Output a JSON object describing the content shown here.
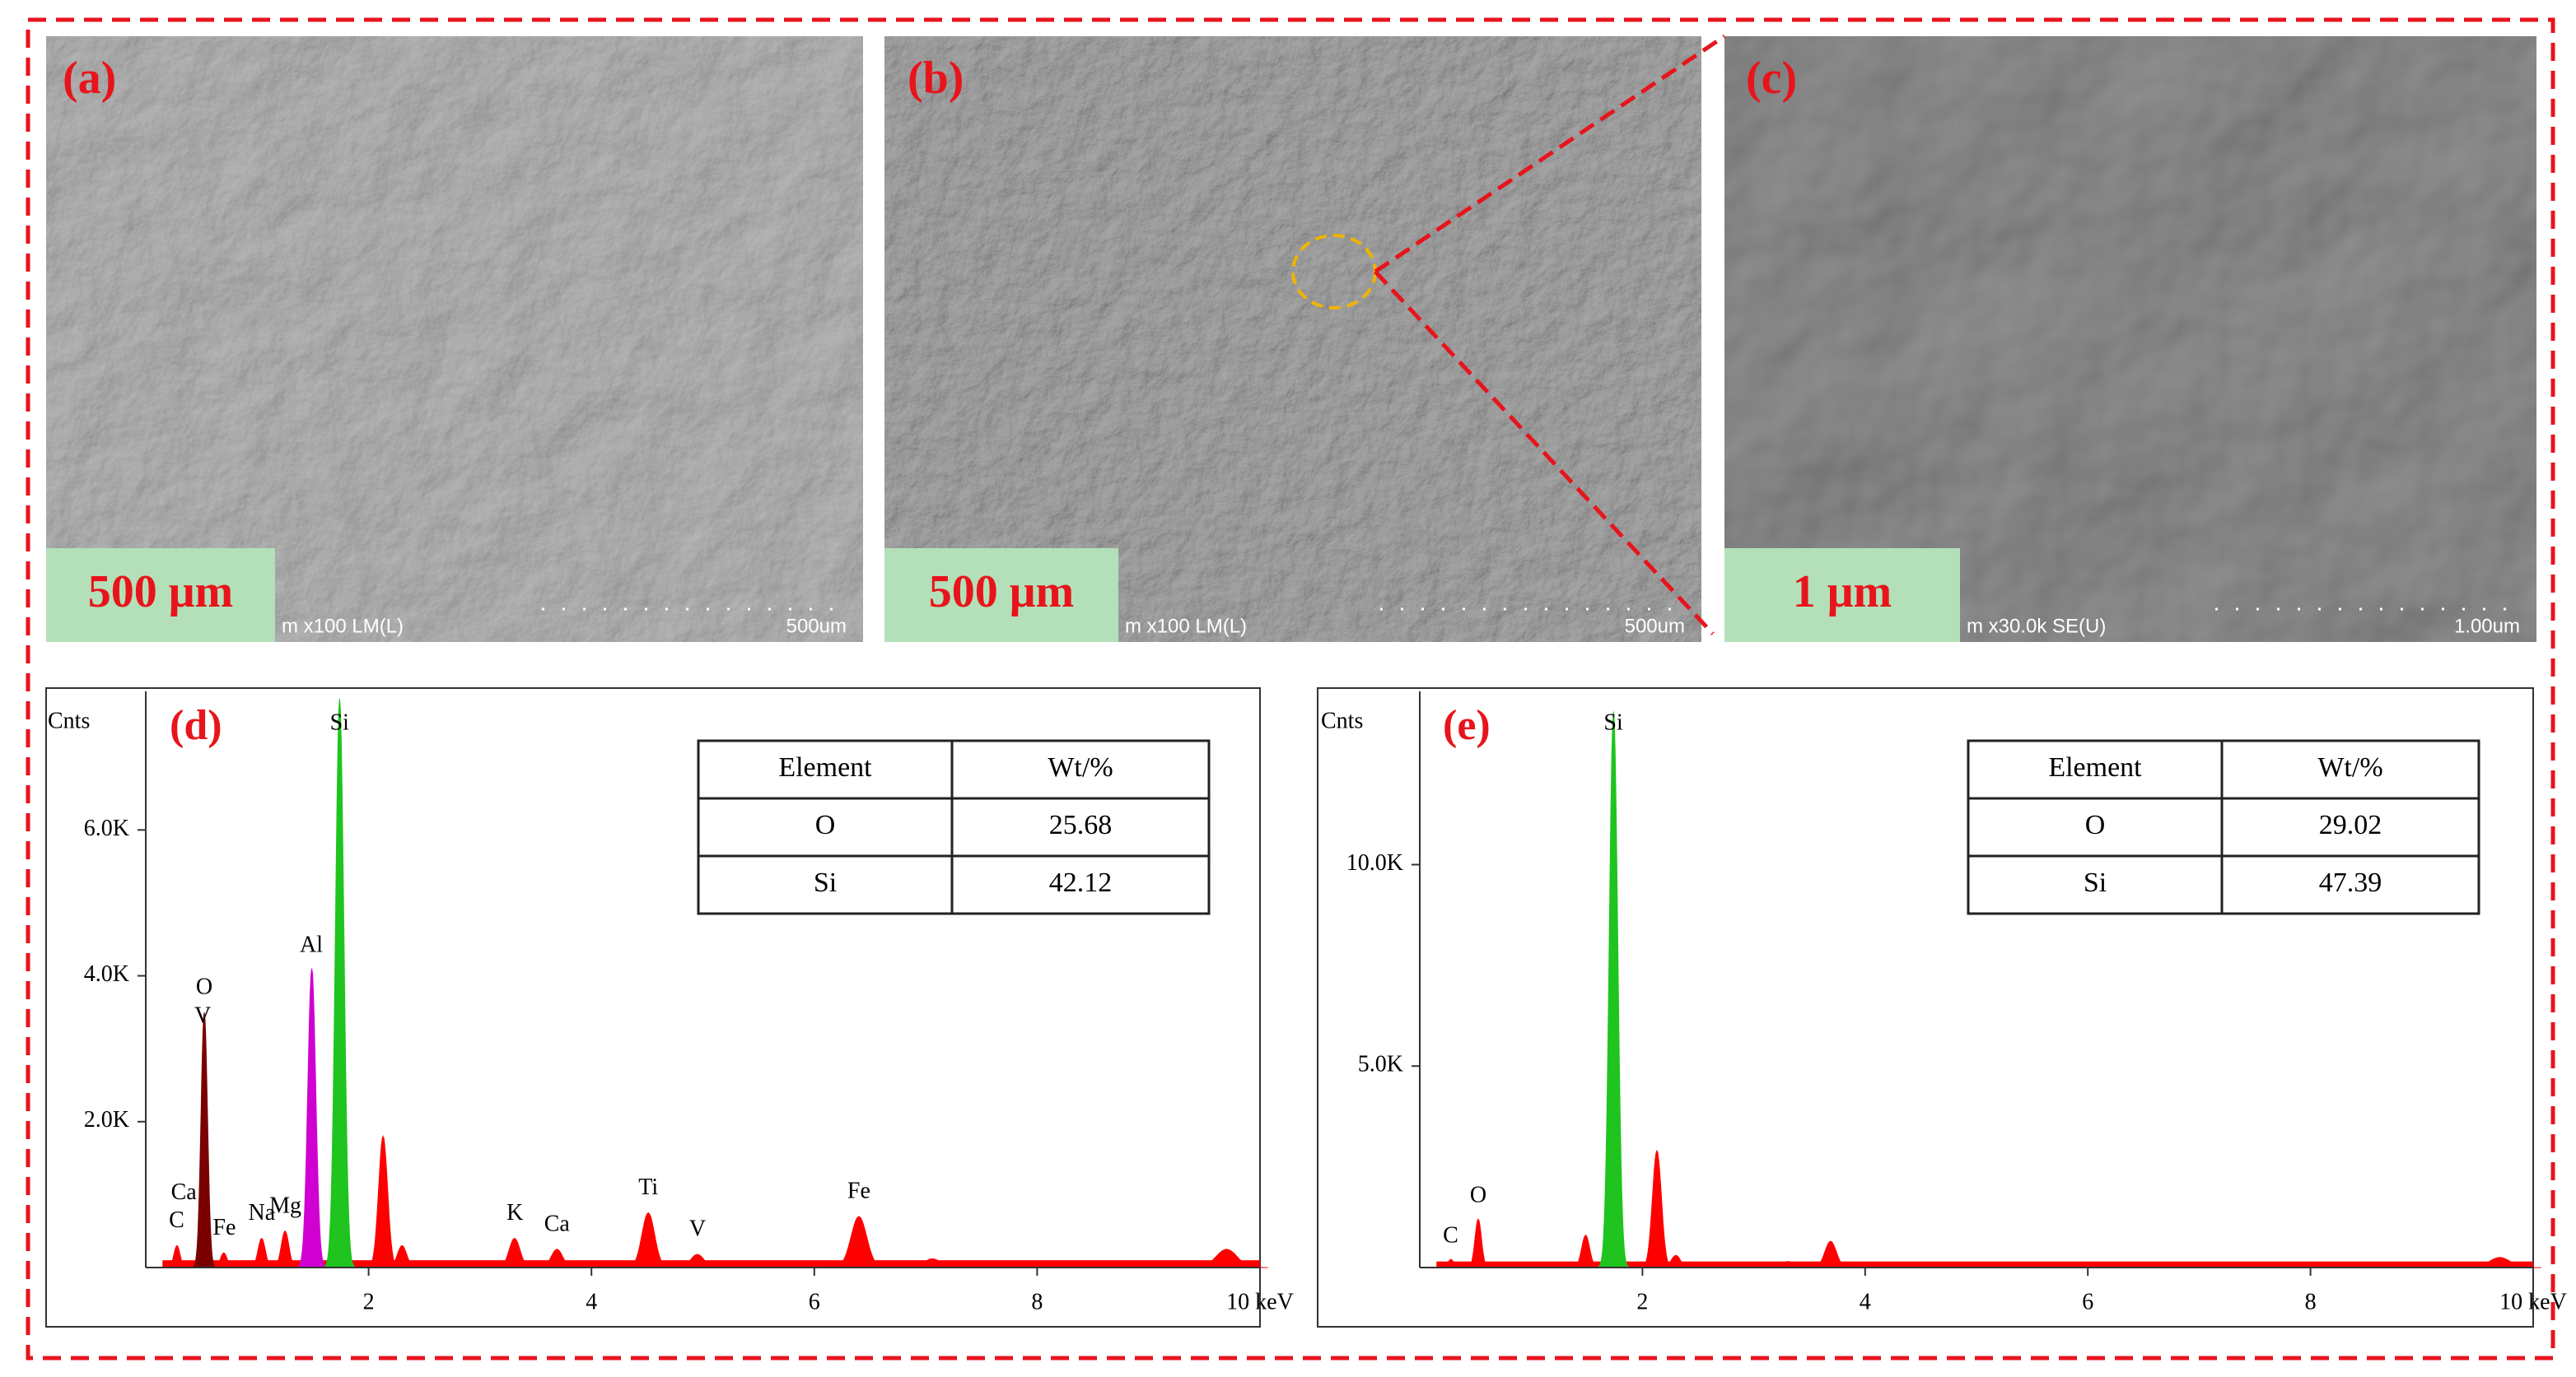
{
  "panels": [
    {
      "label": "(a)",
      "scale_label": "500 μm",
      "info": "m x100 LM(L)",
      "scale": "500um"
    },
    {
      "label": "(b)",
      "scale_label": "500 μm",
      "info": "m x100 LM(L)",
      "scale": "500um"
    },
    {
      "label": "(c)",
      "scale_label": "1 μm",
      "info": "m x30.0k SE(U)",
      "scale": "1.00um"
    }
  ],
  "spectra": [
    {
      "type": "spectrum",
      "label": "(d)",
      "y_label": "Cnts",
      "xlim": [
        0,
        10
      ],
      "ylim": [
        0,
        7900
      ],
      "xticks": [
        2,
        4,
        6,
        8,
        {
          "value": 10,
          "label": "10 keV"
        }
      ],
      "yticks": [
        {
          "value": 2000,
          "label": "2.0K"
        },
        {
          "value": 4000,
          "label": "4.0K"
        },
        {
          "value": 6000,
          "label": "6.0K"
        }
      ],
      "background": 100,
      "peaks": {
        "x": [
          0.28,
          0.525,
          0.7,
          1.04,
          1.25,
          1.49,
          1.74,
          2.13,
          2.3,
          3.31,
          3.69,
          4.51,
          4.95,
          6.4,
          7.06,
          9.7
        ],
        "values": [
          300,
          3500,
          200,
          400,
          500,
          4100,
          7800,
          1800,
          300,
          400,
          250,
          750,
          180,
          700,
          120,
          250
        ],
        "colors": [
          "#ff0000",
          "#7a0000",
          "#ff0000",
          "#ff0000",
          "#ff0000",
          "#d000d0",
          "#1fc41f",
          "#ff0000",
          "#ff0000",
          "#ff0000",
          "#ff0000",
          "#ff0000",
          "#ff0000",
          "#ff0000",
          "#ff0000",
          "#ff0000"
        ]
      },
      "annotations": {
        "text": [
          "C",
          "Ca",
          "Fe",
          "Na",
          "Mg",
          "Al",
          "Si",
          "O",
          "V",
          "K",
          "Ca",
          "Ti",
          "V",
          "Fe"
        ],
        "x": [
          0.277,
          0.341,
          0.705,
          1.041,
          1.253,
          1.486,
          1.739,
          0.525,
          0.511,
          3.313,
          3.69,
          4.51,
          4.952,
          6.4
        ]
      },
      "table": {
        "header": [
          "Element",
          "Wt/%"
        ],
        "rows": [
          [
            "O",
            25.68
          ],
          [
            "Si",
            42.12
          ]
        ]
      }
    },
    {
      "type": "spectrum",
      "label": "(e)",
      "y_label": "Cnts",
      "xlim": [
        0,
        10
      ],
      "ylim": [
        0,
        14300
      ],
      "xticks": [
        2,
        4,
        6,
        8,
        {
          "value": 10,
          "label": "10 keV"
        }
      ],
      "yticks": [
        {
          "value": 5000,
          "label": "5.0K"
        },
        {
          "value": 10000,
          "label": "10.0K"
        }
      ],
      "background": 150,
      "peaks": {
        "x": [
          0.28,
          0.525,
          1.49,
          1.74,
          2.13,
          2.3,
          3.31,
          3.69,
          9.7
        ],
        "values": [
          200,
          1200,
          800,
          13800,
          2900,
          300,
          150,
          650,
          250
        ],
        "colors": [
          "#ff0000",
          "#ff0000",
          "#ff0000",
          "#1fc41f",
          "#ff0000",
          "#ff0000",
          "#ff0000",
          "#ff0000",
          "#ff0000"
        ]
      },
      "annotations": {
        "text": [
          "C",
          "O",
          "Si"
        ],
        "x": [
          0.277,
          0.525,
          1.739
        ]
      },
      "table": {
        "header": [
          "Element",
          "Wt/%"
        ],
        "rows": [
          [
            "O",
            29.02
          ],
          [
            "Si",
            47.39
          ]
        ]
      }
    }
  ]
}
